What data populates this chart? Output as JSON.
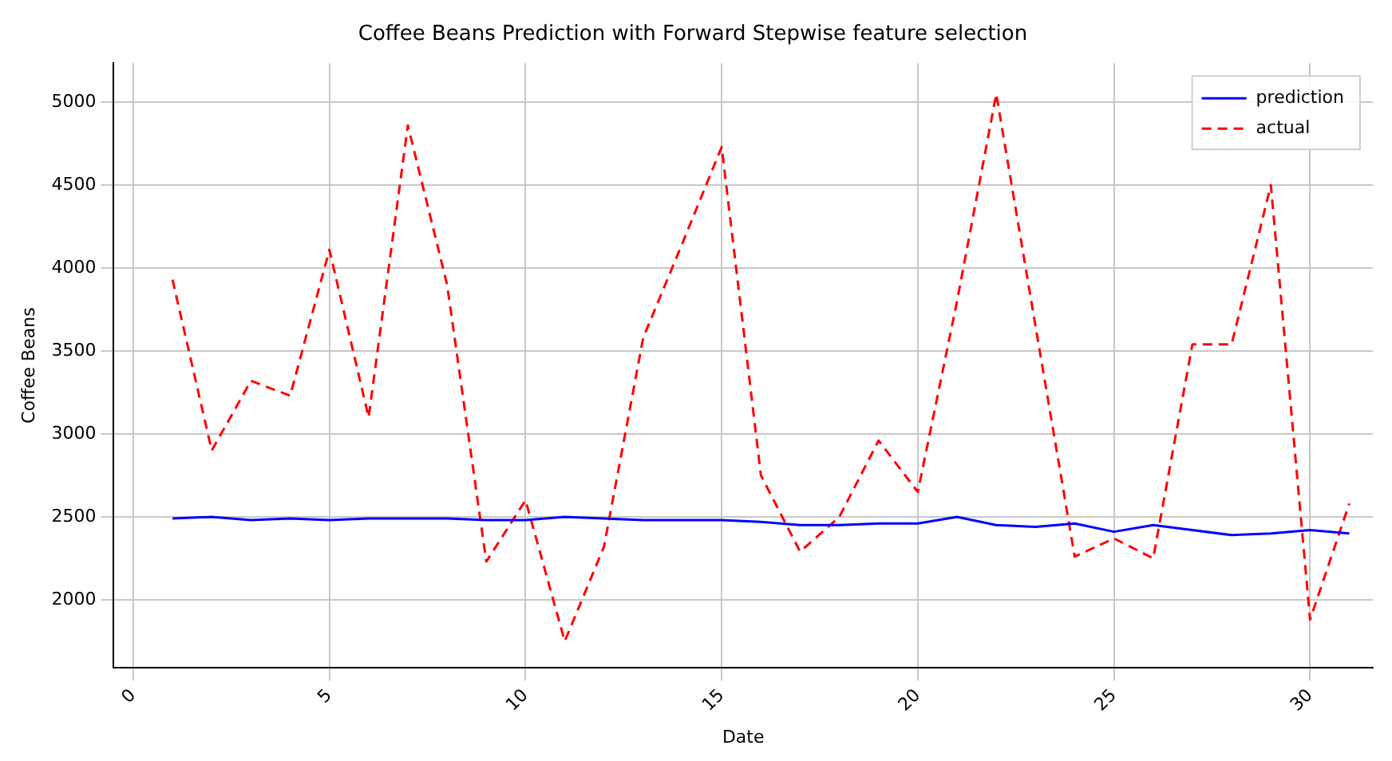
{
  "chart_data": {
    "type": "line",
    "title": "Coffee Beans Prediction with Forward Stepwise feature selection",
    "xlabel": "Date",
    "ylabel": "Coffee Beans",
    "x": [
      1,
      2,
      3,
      4,
      5,
      6,
      7,
      8,
      9,
      10,
      11,
      12,
      13,
      14,
      15,
      16,
      17,
      18,
      19,
      20,
      21,
      22,
      23,
      24,
      25,
      26,
      27,
      28,
      29,
      30,
      31
    ],
    "series": [
      {
        "name": "prediction",
        "color": "#0000ff",
        "line_style": "solid",
        "values": [
          2490,
          2500,
          2480,
          2490,
          2480,
          2490,
          2490,
          2490,
          2480,
          2480,
          2500,
          2490,
          2480,
          2480,
          2480,
          2470,
          2450,
          2450,
          2460,
          2460,
          2500,
          2450,
          2440,
          2460,
          2410,
          2450,
          2420,
          2390,
          2400,
          2420,
          2400
        ]
      },
      {
        "name": "actual",
        "color": "#ff0000",
        "line_style": "dashed",
        "values": [
          3930,
          2900,
          3320,
          3230,
          4110,
          3100,
          4860,
          3900,
          2230,
          2600,
          1750,
          2320,
          3580,
          4150,
          4730,
          2750,
          2290,
          2500,
          2960,
          2650,
          3800,
          5050,
          3650,
          2260,
          2370,
          2250,
          3540,
          3540,
          4500,
          1880,
          2580
        ]
      }
    ],
    "xlim": [
      -0.5,
      31.6
    ],
    "xticks": [
      0,
      5,
      10,
      15,
      20,
      25,
      30
    ],
    "ylim": [
      1590,
      5235
    ],
    "yticks": [
      2000,
      2500,
      3000,
      3500,
      4000,
      4500,
      5000
    ],
    "grid": true,
    "legend": "top right",
    "marker": "none"
  }
}
